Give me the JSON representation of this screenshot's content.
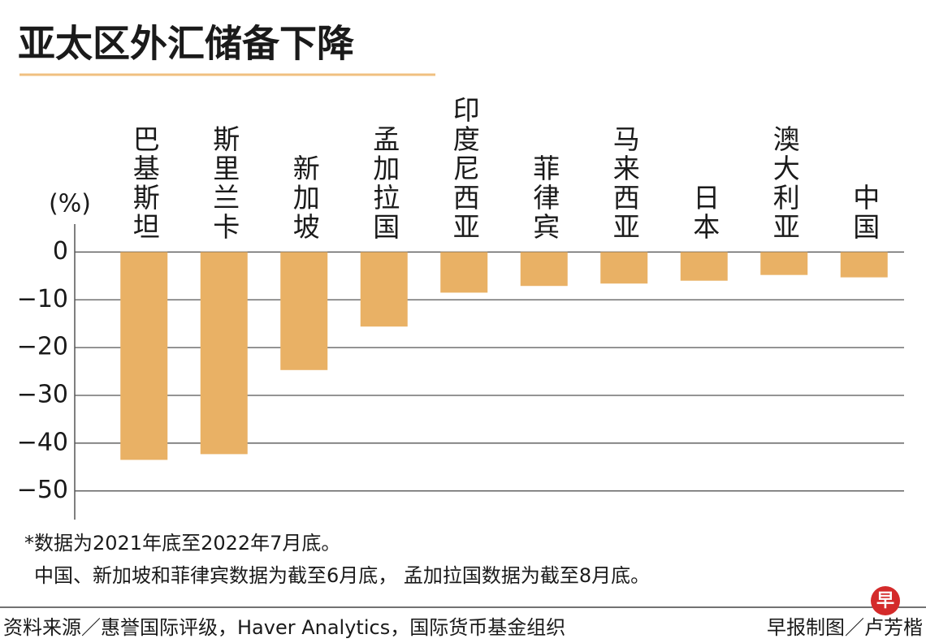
{
  "chart_data": {
    "type": "bar",
    "title": "亚太区外汇储备下降",
    "unit_label": "(%)",
    "categories": [
      "巴基斯坦",
      "斯里兰卡",
      "新加坡",
      "孟加拉国",
      "印度尼西亚",
      "菲律宾",
      "马来西亚",
      "日本",
      "澳大利亚",
      "中国"
    ],
    "values": [
      -43.5,
      -42.3,
      -24.7,
      -15.6,
      -8.5,
      -7.1,
      -6.6,
      -6.0,
      -4.8,
      -5.3
    ],
    "color": "#e9b165",
    "ylim": [
      -56,
      5
    ],
    "yticks": [
      0,
      {
        "value": -10,
        "label": "−10"
      },
      {
        "value": -20,
        "label": "−20"
      },
      {
        "value": -30,
        "label": "−30"
      },
      {
        "value": -40,
        "label": "−40"
      },
      {
        "value": -50,
        "label": "−50"
      }
    ],
    "grid": true,
    "notes": [
      "*数据为2021年底至2022年7月底。",
      "中国、新加坡和菲律宾数据为截至6月底， 孟加拉国数据为截至8月底。"
    ],
    "source": "资料来源／惠誉国际评级，Haver Analytics，国际货币基金组织",
    "credit": "早报制图／卢芳楷",
    "logo": "早"
  }
}
